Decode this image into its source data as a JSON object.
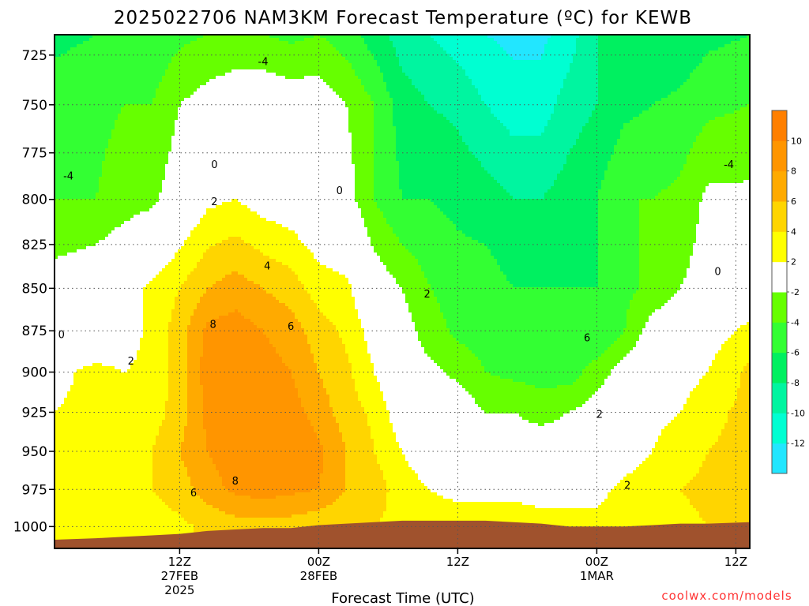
{
  "chart_data": {
    "type": "heatmap",
    "title": "2025022706 NAM3KM Forecast Temperature (ºC) for KEWB",
    "xlabel": "Forecast Time (UTC)",
    "ylabel": "",
    "credit": "coolwx.com/models",
    "y_axis": {
      "scale": "log-pressure",
      "inverted": true,
      "range_hPa": [
        1015,
        715
      ],
      "ticks": [
        "725",
        "750",
        "775",
        "800",
        "825",
        "850",
        "875",
        "900",
        "925",
        "950",
        "975",
        "1000"
      ],
      "tick_values": [
        725,
        750,
        775,
        800,
        825,
        850,
        875,
        900,
        925,
        950,
        975,
        1000
      ]
    },
    "x_axis": {
      "range_hours": [
        -3,
        47
      ],
      "ticks": [
        {
          "hour": 6,
          "lines": [
            "12Z",
            "27FEB",
            "2025"
          ]
        },
        {
          "hour": 16,
          "lines": [
            "00Z",
            "28FEB"
          ]
        },
        {
          "hour": 26,
          "lines": [
            "12Z"
          ]
        },
        {
          "hour": 36,
          "lines": [
            "00Z",
            "1MAR"
          ]
        },
        {
          "hour": 46,
          "lines": [
            "12Z"
          ]
        }
      ]
    },
    "grid": true,
    "colorbar": {
      "placement": "right",
      "levels": [
        -14,
        -12,
        -10,
        -8,
        -6,
        -4,
        -2,
        2,
        4,
        6,
        8,
        10,
        12
      ],
      "labels": [
        "10",
        "8",
        "6",
        "4",
        "2",
        "-2",
        "-4",
        "-6",
        "-8",
        "-10",
        "-12"
      ],
      "label_values": [
        10,
        8,
        6,
        4,
        2,
        -2,
        -4,
        -6,
        -8,
        -10,
        -12
      ],
      "colors": [
        "#22e6ff",
        "#00ffd2",
        "#00f5a0",
        "#00f060",
        "#33ff33",
        "#66ff00",
        "#ffffff",
        "#ffff00",
        "#ffd500",
        "#ffaa00",
        "#ff9500",
        "#ff7f00"
      ]
    },
    "contour_labels": [
      {
        "text": "-4",
        "hour": 12,
        "p": 728
      },
      {
        "text": "-4",
        "hour": -2,
        "p": 787
      },
      {
        "text": "-4",
        "hour": 45.5,
        "p": 781
      },
      {
        "text": "0",
        "hour": 8.5,
        "p": 781
      },
      {
        "text": "0",
        "hour": 17.5,
        "p": 795
      },
      {
        "text": "0",
        "hour": 44.7,
        "p": 840
      },
      {
        "text": "0",
        "hour": -2.5,
        "p": 877
      },
      {
        "text": "2",
        "hour": 8.5,
        "p": 801
      },
      {
        "text": "2",
        "hour": 2.5,
        "p": 893
      },
      {
        "text": "2",
        "hour": 23.8,
        "p": 853
      },
      {
        "text": "2",
        "hour": 36.2,
        "p": 926
      },
      {
        "text": "2",
        "hour": 38.2,
        "p": 972
      },
      {
        "text": "4",
        "hour": 12.3,
        "p": 837
      },
      {
        "text": "6",
        "hour": 14,
        "p": 872
      },
      {
        "text": "6",
        "hour": 7,
        "p": 977
      },
      {
        "text": "6",
        "hour": 35.3,
        "p": 879
      },
      {
        "text": "8",
        "hour": 8.4,
        "p": 871
      },
      {
        "text": "8",
        "hour": 10,
        "p": 969
      }
    ],
    "temperature_field": {
      "units": "°C",
      "times_hours": [
        -3,
        0,
        2,
        4,
        6,
        8,
        10,
        12,
        14,
        16,
        18,
        20,
        22,
        24,
        26,
        28,
        30,
        32,
        34,
        36,
        38,
        40,
        42,
        44,
        47
      ],
      "pressure_levels_hPa": [
        715,
        750,
        800,
        850,
        875,
        900,
        925,
        950,
        975,
        1000
      ],
      "values": [
        [
          -6.5,
          -6,
          -5.5,
          -5.5,
          -4.5,
          -4,
          -4,
          -4,
          -4.5,
          -4,
          -5,
          -7,
          -9,
          -10,
          -11,
          -12,
          -12.5,
          -12.5,
          -11,
          -8,
          -8,
          -8,
          -7.5,
          -6.5,
          -6
        ],
        [
          -5,
          -4.5,
          -4,
          -4,
          -2,
          -1,
          0,
          0,
          -0.5,
          -0.5,
          -2,
          -4,
          -7,
          -8,
          -8.5,
          -10,
          -11,
          -11,
          -9,
          -8,
          -6.5,
          -6,
          -5.5,
          -4.5,
          -4
        ],
        [
          -4,
          -4,
          -3,
          -2.5,
          -0.5,
          1.5,
          2,
          1,
          0.5,
          -0.5,
          -1,
          -4,
          -6,
          -6,
          -6.5,
          -7,
          -8,
          -8,
          -7,
          -6,
          -4,
          -4,
          -3.5,
          -1.5,
          -1.5
        ],
        [
          -1,
          0,
          1,
          2.5,
          4,
          6,
          7,
          6,
          5,
          3,
          2.5,
          -0.5,
          -2,
          -4,
          -5,
          -5,
          -6,
          -6,
          -6,
          -6,
          -4.5,
          -3.5,
          -2,
          -1,
          0.5
        ],
        [
          1,
          0,
          1,
          2.5,
          5,
          8.5,
          9,
          8,
          7,
          5,
          3.5,
          1,
          -1,
          -3,
          -4.5,
          -5,
          -6,
          -6,
          -6,
          -6,
          -4,
          -1,
          0,
          1,
          2.5
        ],
        [
          1.5,
          2.5,
          2,
          2.5,
          5,
          9,
          10,
          9,
          8,
          6,
          4.5,
          2,
          -0.5,
          -1.5,
          -2.5,
          -4,
          -4.5,
          -5,
          -5,
          -3,
          -1,
          1,
          1,
          2,
          4.5
        ],
        [
          2,
          2.5,
          3,
          3,
          5,
          8.5,
          10,
          10,
          9,
          7,
          5,
          3.5,
          0.5,
          -0.5,
          -0.5,
          -2,
          -2,
          -2.5,
          -2,
          -1,
          1,
          1.5,
          2,
          3.5,
          4.5
        ],
        [
          3,
          3,
          3,
          4,
          6,
          8,
          9.5,
          10,
          10,
          8.5,
          6,
          4,
          2,
          0.5,
          0,
          -1,
          -1,
          -1,
          -1,
          -1,
          1,
          2,
          3,
          4,
          4.5
        ],
        [
          3.5,
          3.5,
          3.5,
          4,
          5,
          7,
          8.5,
          9,
          8.5,
          8,
          6,
          5,
          3,
          2,
          1.5,
          1.5,
          1.5,
          1.5,
          1.5,
          1.5,
          2.5,
          3,
          4,
          4.5,
          5
        ],
        [
          3,
          3,
          3,
          3,
          3.5,
          4.5,
          5,
          5,
          5,
          4.5,
          4,
          4,
          3.5,
          3,
          3,
          3,
          3,
          2.5,
          2.5,
          2.5,
          2.8,
          3,
          3.5,
          4,
          5
        ]
      ],
      "surface_pressure_hPa": {
        "times_hours": [
          -3,
          0,
          2,
          4,
          6,
          8,
          10,
          12,
          14,
          16,
          18,
          20,
          22,
          24,
          26,
          28,
          30,
          32,
          34,
          36,
          38,
          40,
          42,
          44,
          47
        ],
        "values": [
          1009,
          1008,
          1007,
          1006,
          1005,
          1003,
          1002,
          1001,
          1001,
          999,
          998,
          997,
          996,
          996,
          996,
          996,
          997,
          998,
          1000,
          1000,
          1000,
          999,
          998,
          998,
          997
        ]
      }
    }
  }
}
